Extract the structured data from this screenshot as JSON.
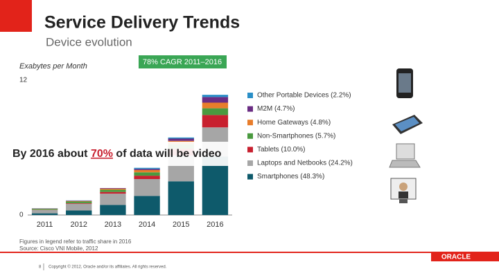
{
  "header": {
    "title": "Service Delivery Trends",
    "subtitle": "Device evolution"
  },
  "chart_data": {
    "type": "stacked-bar",
    "y_label": "Exabytes per Month",
    "annotation": "78% CAGR 2011–2016",
    "categories": [
      "2011",
      "2012",
      "2013",
      "2014",
      "2015",
      "2016"
    ],
    "series": [
      {
        "name": "Smartphones (48.3%)",
        "color": "#0e5a6b",
        "values": [
          0.15,
          0.4,
          0.9,
          1.7,
          3.0,
          5.2
        ]
      },
      {
        "name": "Laptops and Netbooks (24.2%)",
        "color": "#a6a6a6",
        "values": [
          0.3,
          0.6,
          1.0,
          1.5,
          2.3,
          2.6
        ]
      },
      {
        "name": "Tablets (10.0%)",
        "color": "#c8202f",
        "values": [
          0.02,
          0.05,
          0.15,
          0.3,
          0.6,
          1.1
        ]
      },
      {
        "name": "Non-Smartphones (5.7%)",
        "color": "#4a9a3f",
        "values": [
          0.08,
          0.15,
          0.2,
          0.3,
          0.4,
          0.6
        ]
      },
      {
        "name": "Home Gateways (4.8%)",
        "color": "#e87d2b",
        "values": [
          0.02,
          0.05,
          0.1,
          0.2,
          0.3,
          0.5
        ]
      },
      {
        "name": "M2M (4.7%)",
        "color": "#6a2c83",
        "values": [
          0.02,
          0.03,
          0.05,
          0.1,
          0.2,
          0.5
        ]
      },
      {
        "name": "Other Portable Devices (2.2%)",
        "color": "#2a8fc7",
        "values": [
          0.01,
          0.02,
          0.0,
          0.1,
          0.1,
          0.2
        ]
      }
    ],
    "ylim": [
      0,
      12
    ],
    "yticks": [
      0,
      12
    ],
    "notes": [
      "Figures in legend refer to traffic share in 2016",
      "Source: Cisco VNI Mobile, 2012"
    ]
  },
  "callout": {
    "before": "By 2016 about ",
    "highlight": "70%",
    "after": " of data will be video"
  },
  "footer": {
    "page": "8",
    "copyright": "Copyright © 2012, Oracle and/or its affiliates. All rights reserved.",
    "logo": "ORACLE"
  }
}
